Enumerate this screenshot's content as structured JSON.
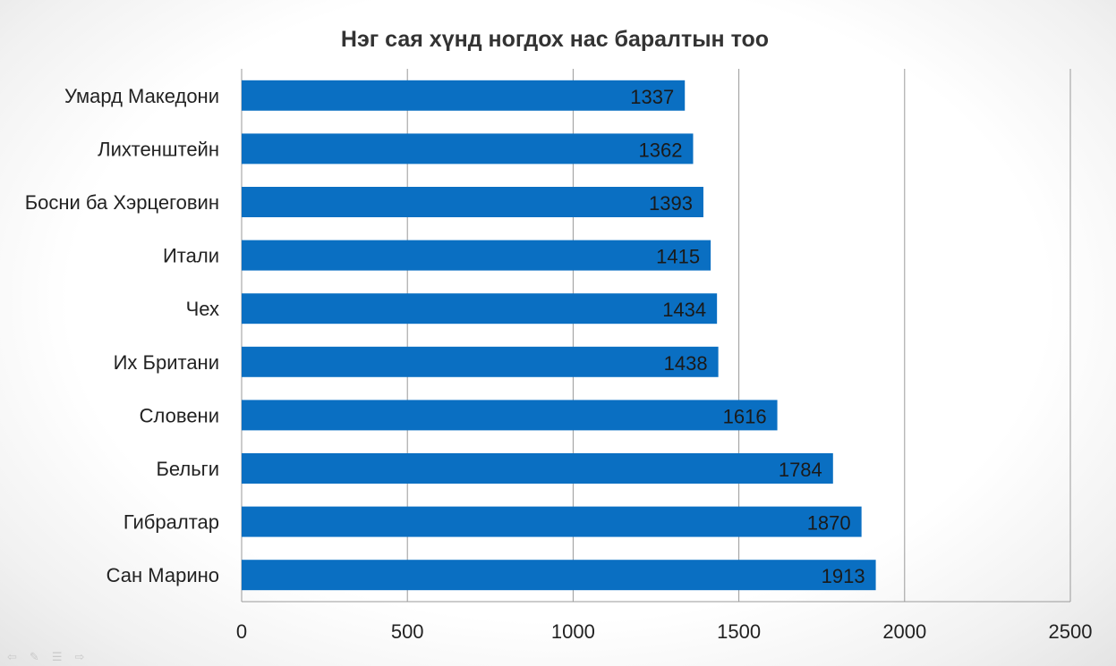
{
  "chart_data": {
    "type": "bar",
    "orientation": "horizontal",
    "title": "Нэг сая хүнд ногдох нас баралтын тоо",
    "categories": [
      "Умард Македони",
      "Лихтенштейн",
      "Босни ба Хэрцеговин",
      "Итали",
      "Чех",
      "Их Британи",
      "Словени",
      "Бельги",
      "Гибралтар",
      "Сан Марино"
    ],
    "values": [
      1337,
      1362,
      1393,
      1415,
      1434,
      1438,
      1616,
      1784,
      1870,
      1913
    ],
    "xlim": [
      0,
      2500
    ],
    "xticks": [
      0,
      500,
      1000,
      1500,
      2000,
      2500
    ],
    "xtick_labels": [
      "0",
      "500",
      "1000",
      "1500",
      "2000",
      "2500"
    ],
    "grid": "vertical",
    "data_labels": "inside-end",
    "bar_color": "#0A6FC2",
    "grid_color": "#9a9a9a"
  },
  "nav_icons": [
    "arrow-left-icon",
    "pen-icon",
    "menu-icon",
    "arrow-right-icon"
  ]
}
